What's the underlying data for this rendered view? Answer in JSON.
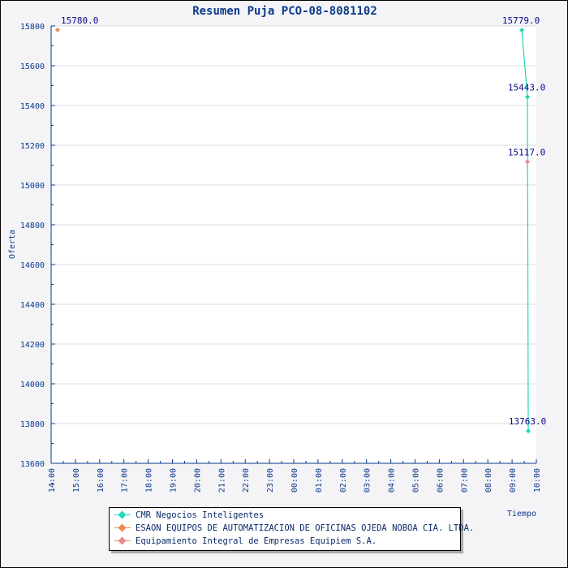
{
  "chart_data": {
    "type": "line",
    "title": "Resumen Puja PCO-08-8081102",
    "xlabel": "Tiempo",
    "ylabel": "Oferta",
    "ylim": [
      13600,
      15800
    ],
    "yticks": [
      "13600",
      "13800",
      "14000",
      "14200",
      "14400",
      "14600",
      "14800",
      "15000",
      "15200",
      "15400",
      "15600",
      "15800"
    ],
    "xticks": [
      "14:00",
      "15:00",
      "16:00",
      "17:00",
      "18:00",
      "19:00",
      "20:00",
      "21:00",
      "22:00",
      "23:00",
      "00:00",
      "01:00",
      "02:00",
      "03:00",
      "04:00",
      "05:00",
      "06:00",
      "07:00",
      "08:00",
      "09:00",
      "10:00"
    ],
    "grid": true,
    "legend_placement": "bottom-center",
    "series": [
      {
        "name": "CMR Negocios Inteligentes",
        "color": "#20d8b8",
        "points": [
          {
            "x": "09:24",
            "y": 15779,
            "label": "15779.0"
          },
          {
            "x": "09:38",
            "y": 15443,
            "label": "15443.0"
          },
          {
            "x": "09:40",
            "y": 13763,
            "label": "13763.0"
          }
        ]
      },
      {
        "name": "ESAON EQUIPOS DE AUTOMATIZACION DE OFICINAS OJEDA NOBOA CIA. LTDA.",
        "color": "#f08850",
        "points": [
          {
            "x": "14:16",
            "y": 15780,
            "label": "15780.0"
          }
        ]
      },
      {
        "name": "Equipamiento Integral de Empresas Equipiem S.A.",
        "color": "#f08888",
        "points": [
          {
            "x": "09:38",
            "y": 15117,
            "label": "15117.0"
          }
        ]
      }
    ]
  }
}
